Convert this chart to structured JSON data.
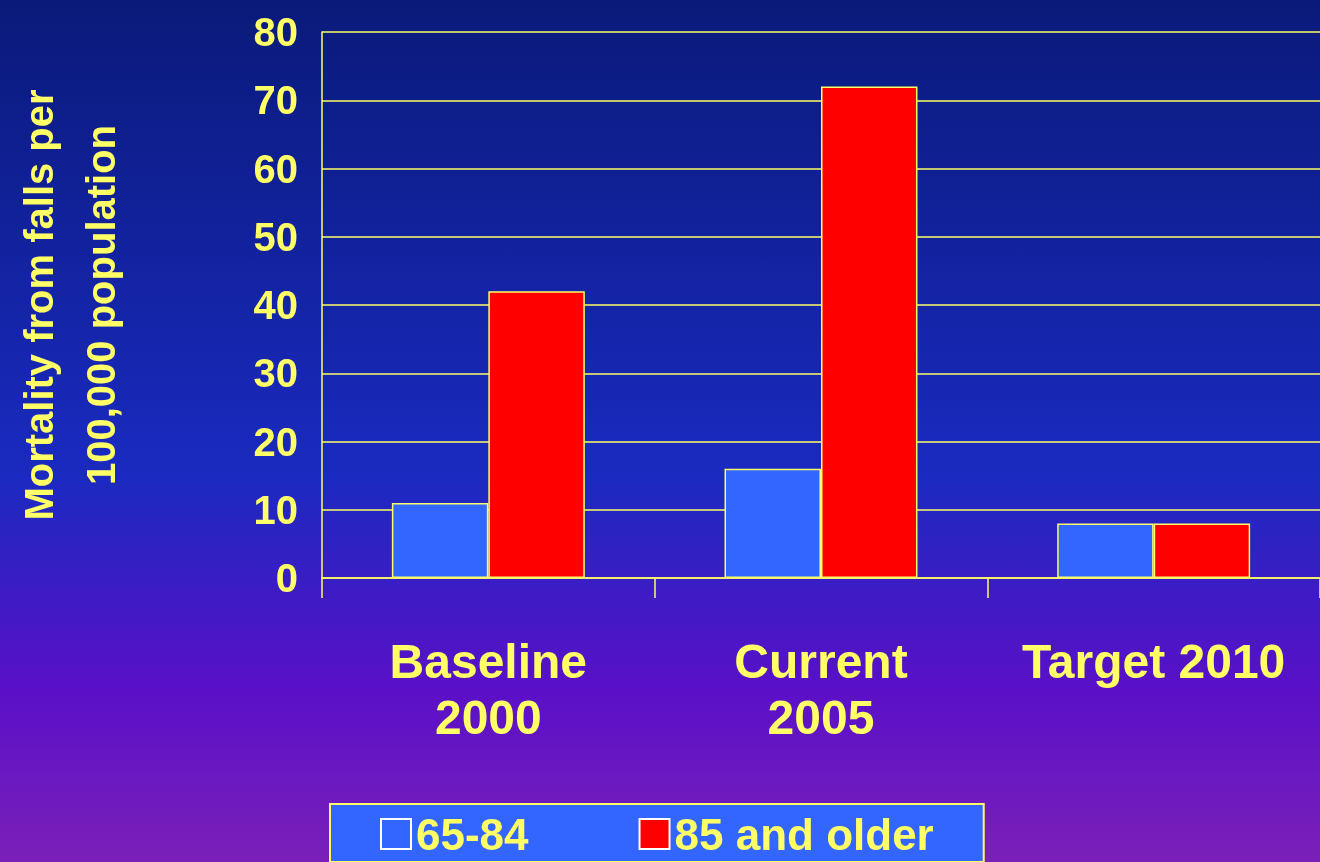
{
  "chart_data": {
    "type": "bar",
    "ylabel": "Mortality from falls per\n100,000 population",
    "categories": [
      "Baseline\n2000",
      "Current\n2005",
      "Target 2010"
    ],
    "series": [
      {
        "name": "65-84",
        "color": "#3366ff",
        "values": [
          11,
          16,
          8
        ]
      },
      {
        "name": "85 and older",
        "color": "#ff0000",
        "values": [
          42,
          72,
          8
        ]
      }
    ],
    "ylim": [
      0,
      80
    ],
    "yticks": [
      0,
      10,
      20,
      30,
      40,
      50,
      60,
      70,
      80
    ],
    "grid": "y",
    "legend": "bottom"
  }
}
